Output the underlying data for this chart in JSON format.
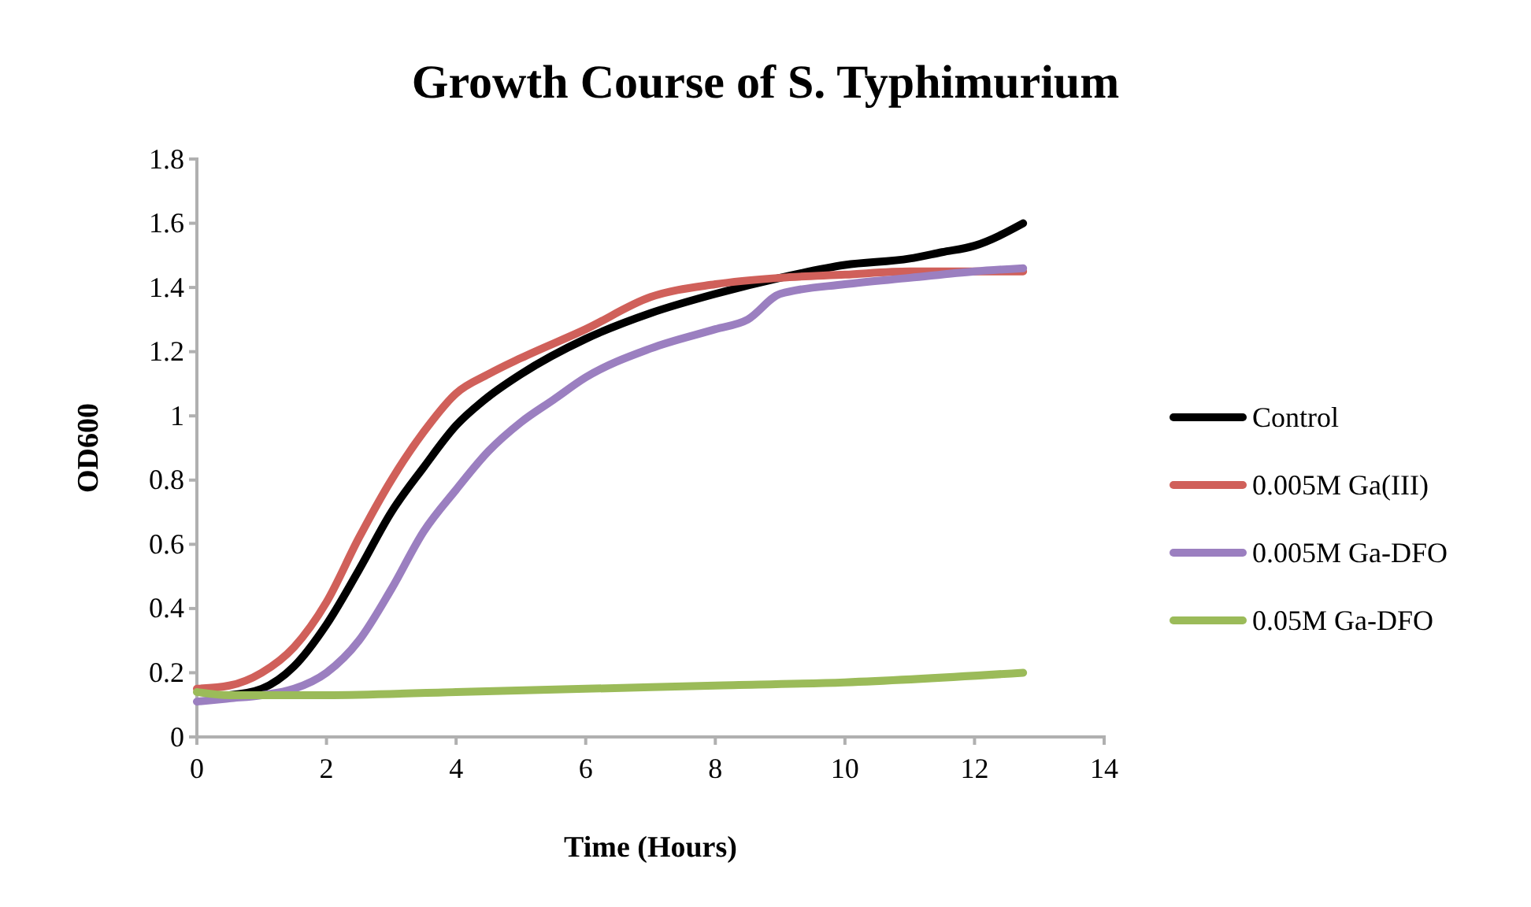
{
  "chart_data": {
    "type": "line",
    "title": "Growth Course of S. Typhimurium",
    "xlabel": "Time (Hours)",
    "ylabel": "OD600",
    "xlim": [
      0,
      14
    ],
    "xticks": [
      0,
      2,
      4,
      6,
      8,
      10,
      12,
      14
    ],
    "ylim": [
      0,
      1.8
    ],
    "yticks": [
      0,
      0.2,
      0.4,
      0.6,
      0.8,
      1,
      1.2,
      1.4,
      1.6,
      1.8
    ],
    "grid": false,
    "legend": "right",
    "marker": "none",
    "line_style": "solid",
    "series": [
      {
        "name": "Control",
        "color": "#000000",
        "x": [
          0.5,
          1,
          1.5,
          2,
          2.5,
          3,
          3.5,
          4,
          4.5,
          5,
          6,
          7,
          8,
          9,
          10,
          11,
          11.5,
          12,
          12.75
        ],
        "values": [
          0.13,
          0.15,
          0.22,
          0.35,
          0.52,
          0.7,
          0.84,
          0.97,
          1.06,
          1.13,
          1.24,
          1.32,
          1.38,
          1.43,
          1.47,
          1.49,
          1.51,
          1.53,
          1.6
        ]
      },
      {
        "name": "0.005M Ga(III)",
        "color": "#d0605a",
        "x": [
          0,
          0.5,
          1,
          1.5,
          2,
          2.5,
          3,
          3.5,
          4,
          4.5,
          5,
          6,
          7,
          8,
          9,
          10,
          11,
          12.75
        ],
        "values": [
          0.15,
          0.16,
          0.2,
          0.28,
          0.42,
          0.62,
          0.8,
          0.95,
          1.07,
          1.13,
          1.18,
          1.27,
          1.37,
          1.41,
          1.43,
          1.44,
          1.45,
          1.45
        ]
      },
      {
        "name": "0.005M Ga-DFO",
        "color": "#9b7fc0",
        "x": [
          0,
          0.5,
          1,
          1.5,
          2,
          2.5,
          3,
          3.5,
          4,
          4.5,
          5,
          5.5,
          6,
          7,
          8,
          8.5,
          9,
          10,
          11,
          12,
          12.75
        ],
        "values": [
          0.11,
          0.12,
          0.13,
          0.15,
          0.2,
          0.3,
          0.46,
          0.64,
          0.77,
          0.89,
          0.98,
          1.05,
          1.12,
          1.21,
          1.27,
          1.3,
          1.38,
          1.41,
          1.43,
          1.45,
          1.46
        ]
      },
      {
        "name": "0.05M Ga-DFO",
        "color": "#9bbb59",
        "x": [
          0,
          0.5,
          2,
          4,
          6,
          8,
          10,
          12.75
        ],
        "values": [
          0.14,
          0.13,
          0.13,
          0.14,
          0.15,
          0.16,
          0.17,
          0.2
        ]
      }
    ]
  }
}
